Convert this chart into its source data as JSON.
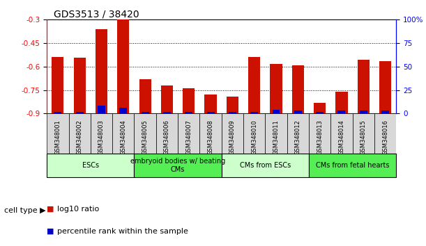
{
  "title": "GDS3513 / 38420",
  "samples": [
    "GSM348001",
    "GSM348002",
    "GSM348003",
    "GSM348004",
    "GSM348005",
    "GSM348006",
    "GSM348007",
    "GSM348008",
    "GSM348009",
    "GSM348010",
    "GSM348011",
    "GSM348012",
    "GSM348013",
    "GSM348014",
    "GSM348015",
    "GSM348016"
  ],
  "log10_ratio": [
    -0.54,
    -0.545,
    -0.36,
    -0.3,
    -0.68,
    -0.72,
    -0.74,
    -0.78,
    -0.79,
    -0.54,
    -0.585,
    -0.59,
    -0.83,
    -0.76,
    -0.555,
    -0.565
  ],
  "percentile_rank": [
    2,
    2,
    8,
    6,
    2,
    2,
    2,
    2,
    2,
    2,
    4,
    3,
    2,
    3,
    3,
    3
  ],
  "ylim_left": [
    -0.9,
    -0.3
  ],
  "ylim_right": [
    0,
    100
  ],
  "yticks_left": [
    -0.9,
    -0.75,
    -0.6,
    -0.45,
    -0.3
  ],
  "yticks_right": [
    0,
    25,
    50,
    75,
    100
  ],
  "ytick_labels_left": [
    "-0.9",
    "-0.75",
    "-0.6",
    "-0.45",
    "-0.3"
  ],
  "ytick_labels_right": [
    "0",
    "25",
    "50",
    "75",
    "100%"
  ],
  "bar_color_red": "#cc1100",
  "bar_color_blue": "#0000cc",
  "cell_type_groups": [
    {
      "label": "ESCs",
      "start": 0,
      "end": 3,
      "color": "#ccffcc"
    },
    {
      "label": "embryoid bodies w/ beating\nCMs",
      "start": 4,
      "end": 7,
      "color": "#55ee55"
    },
    {
      "label": "CMs from ESCs",
      "start": 8,
      "end": 11,
      "color": "#ccffcc"
    },
    {
      "label": "CMs from fetal hearts",
      "start": 12,
      "end": 15,
      "color": "#55ee55"
    }
  ],
  "cell_type_label": "cell type",
  "legend_red": "log10 ratio",
  "legend_blue": "percentile rank within the sample",
  "bar_width": 0.55,
  "blue_bar_width": 0.35,
  "tick_fontsize": 7.5,
  "sample_fontsize": 6,
  "title_fontsize": 10
}
